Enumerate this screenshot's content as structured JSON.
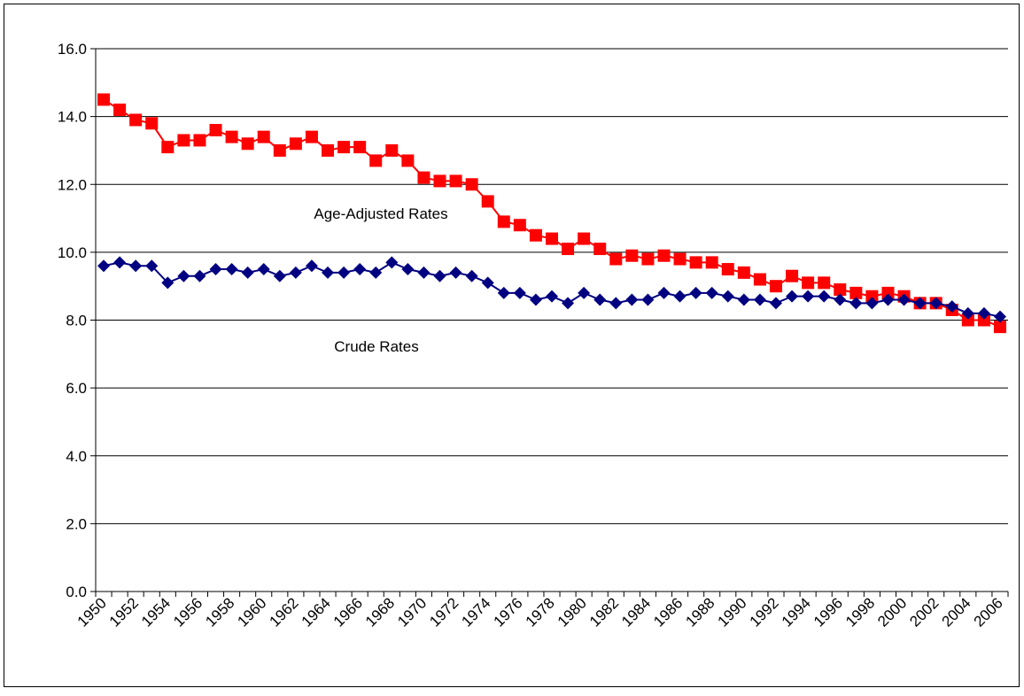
{
  "chart_data": {
    "type": "line",
    "categories": [
      "1950",
      null,
      "1952",
      null,
      "1954",
      null,
      "1956",
      null,
      "1958",
      null,
      "1960",
      null,
      "1962",
      null,
      "1964",
      null,
      "1966",
      null,
      "1968",
      null,
      "1970",
      null,
      "1972",
      null,
      "1974",
      null,
      "1976",
      null,
      "1978",
      null,
      "1980",
      null,
      "1982",
      null,
      "1984",
      null,
      "1986",
      null,
      "1988",
      null,
      "1990",
      null,
      "1992",
      null,
      "1994",
      null,
      "1996",
      null,
      "1998",
      null,
      "2000",
      null,
      "2002",
      null,
      "2004",
      null,
      "2006"
    ],
    "series": [
      {
        "name": "Age-Adjusted Rates",
        "color": "#ff0000",
        "marker": "square",
        "values": [
          14.5,
          14.2,
          13.9,
          13.8,
          13.1,
          13.3,
          13.3,
          13.6,
          13.4,
          13.2,
          13.4,
          13.0,
          13.2,
          13.4,
          13.0,
          13.1,
          13.1,
          12.7,
          13.0,
          12.7,
          12.2,
          12.1,
          12.1,
          12.0,
          11.5,
          10.9,
          10.8,
          10.5,
          10.4,
          10.1,
          10.4,
          10.1,
          9.8,
          9.9,
          9.8,
          9.9,
          9.8,
          9.7,
          9.7,
          9.5,
          9.4,
          9.2,
          9.0,
          9.3,
          9.1,
          9.1,
          8.9,
          8.8,
          8.7,
          8.8,
          8.7,
          8.5,
          8.5,
          8.3,
          8.0,
          8.0,
          7.8
        ]
      },
      {
        "name": "Crude Rates",
        "color": "#000080",
        "marker": "diamond",
        "values": [
          9.6,
          9.7,
          9.6,
          9.6,
          9.1,
          9.3,
          9.3,
          9.5,
          9.5,
          9.4,
          9.5,
          9.3,
          9.4,
          9.6,
          9.4,
          9.4,
          9.5,
          9.4,
          9.7,
          9.5,
          9.4,
          9.3,
          9.4,
          9.3,
          9.1,
          8.8,
          8.8,
          8.6,
          8.7,
          8.5,
          8.8,
          8.6,
          8.5,
          8.6,
          8.6,
          8.8,
          8.7,
          8.8,
          8.8,
          8.7,
          8.6,
          8.6,
          8.5,
          8.7,
          8.7,
          8.7,
          8.6,
          8.5,
          8.5,
          8.6,
          8.6,
          8.5,
          8.5,
          8.4,
          8.2,
          8.2,
          8.1
        ]
      }
    ],
    "ylim": [
      0,
      16
    ],
    "yticks": [
      {
        "value": 0,
        "label": "0.0"
      },
      {
        "value": 2,
        "label": "2.0"
      },
      {
        "value": 4,
        "label": "4.0"
      },
      {
        "value": 6,
        "label": "6.0"
      },
      {
        "value": 8,
        "label": "8.0"
      },
      {
        "value": 10,
        "label": "10.0"
      },
      {
        "value": 12,
        "label": "12.0"
      },
      {
        "value": 14,
        "label": "14.0"
      },
      {
        "value": 16,
        "label": "16.0"
      }
    ],
    "grid": true,
    "legend": "none"
  }
}
